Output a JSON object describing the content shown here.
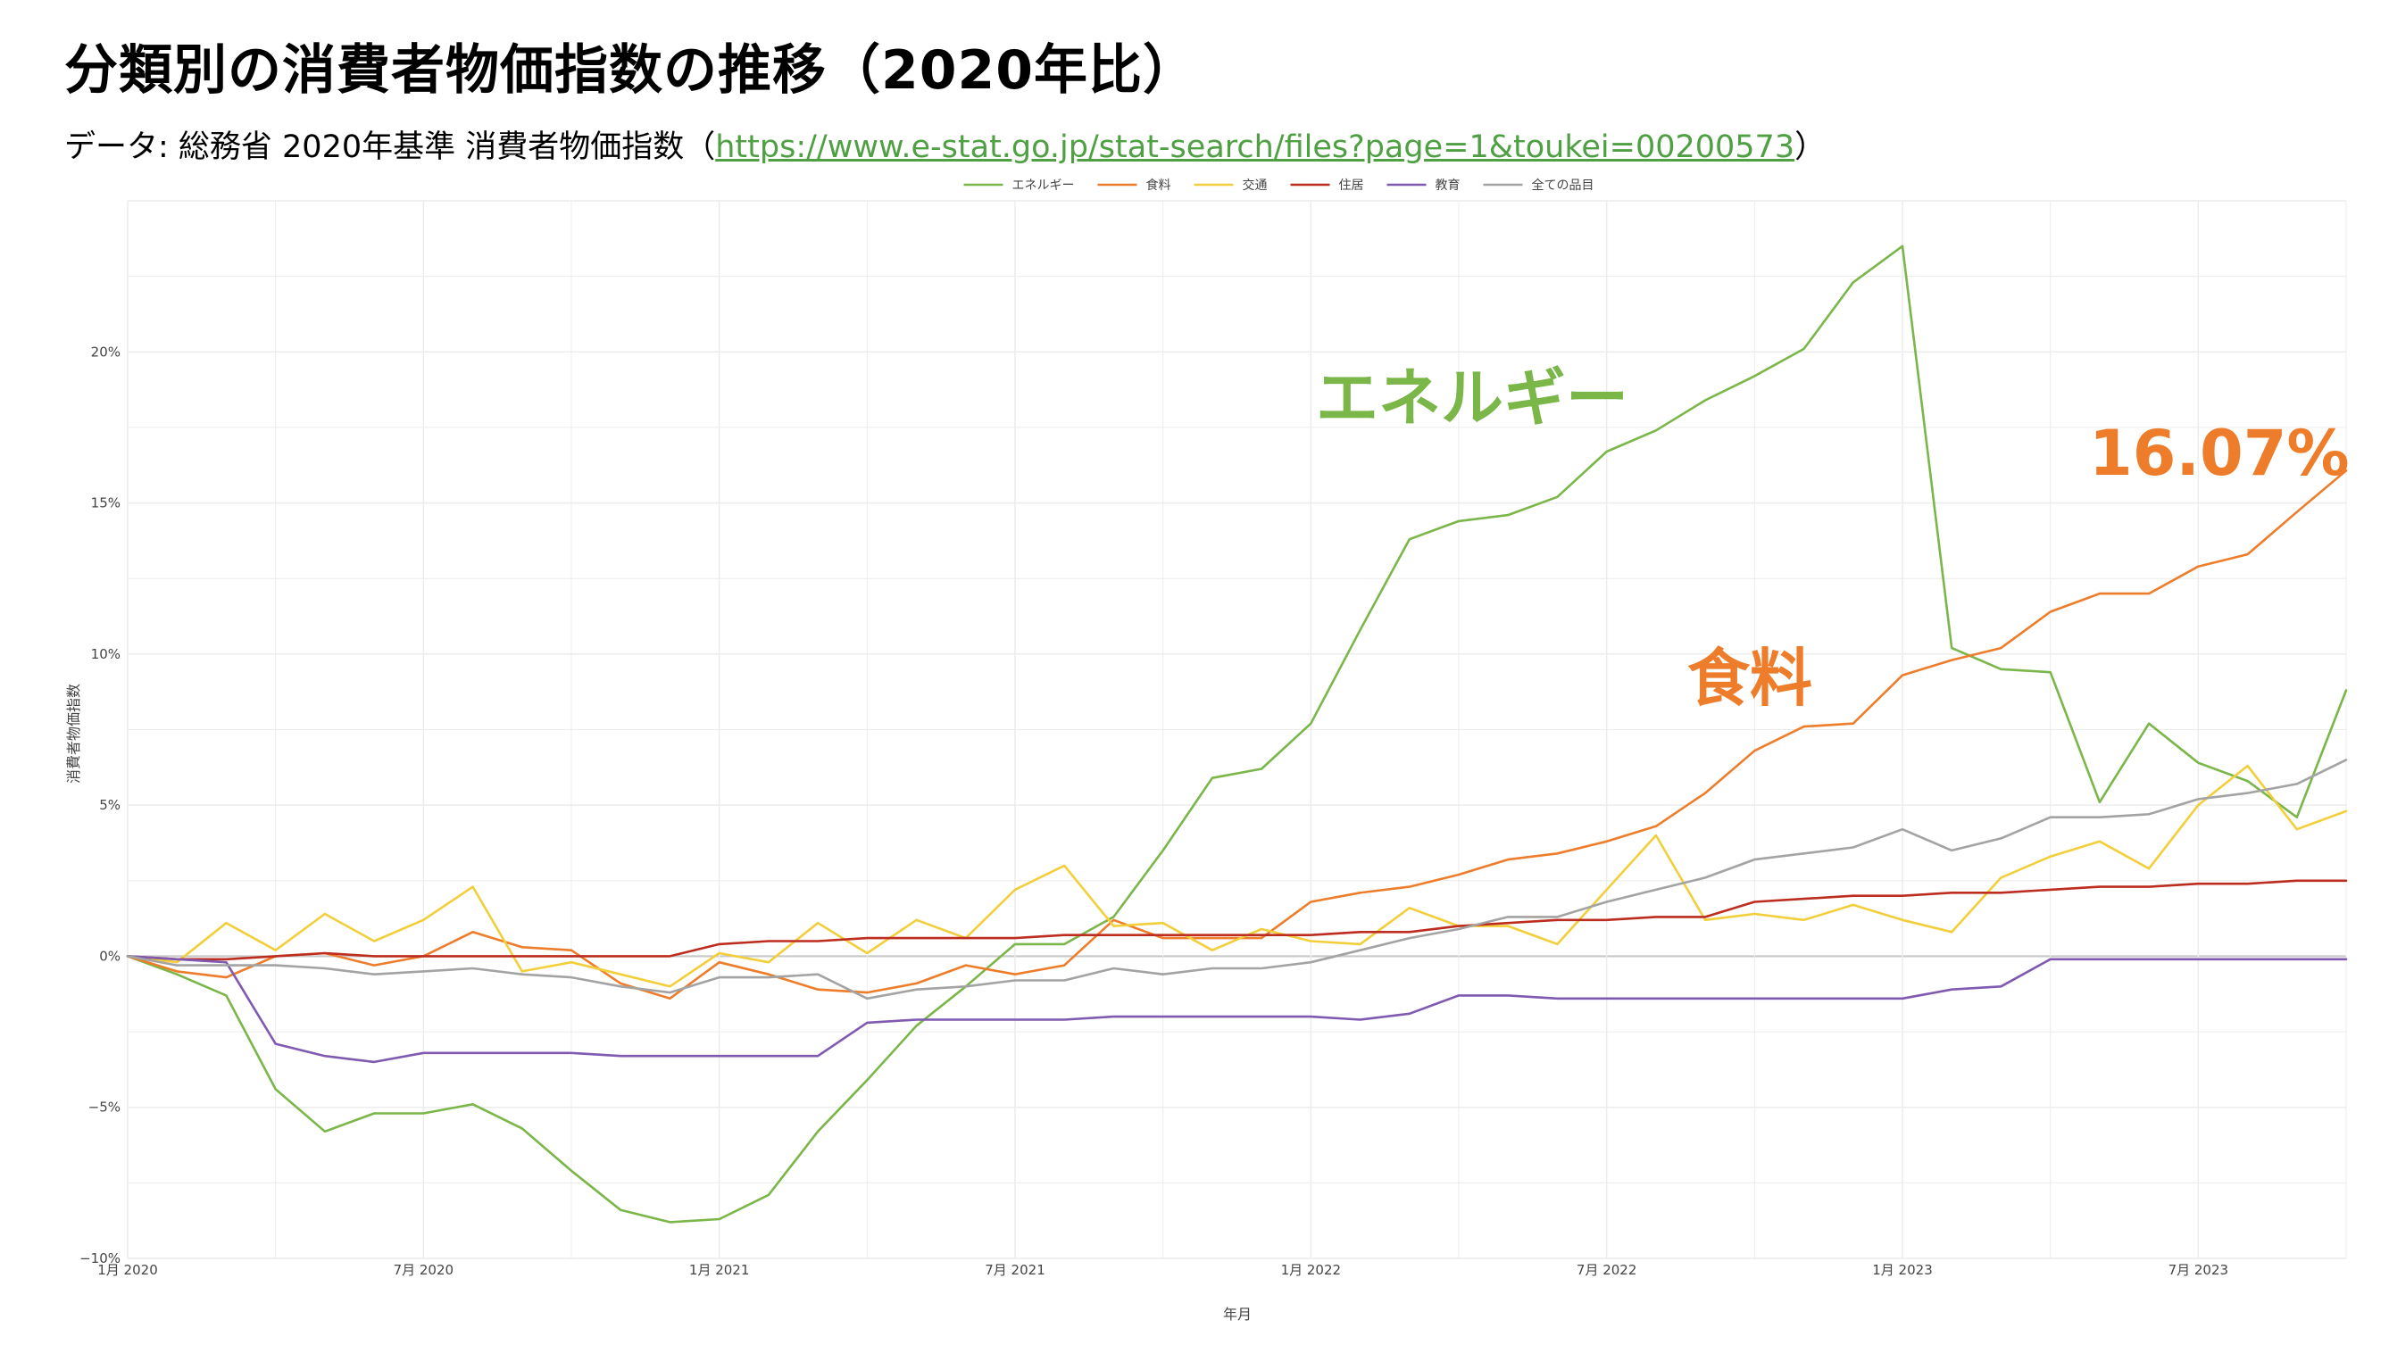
{
  "header": {
    "title": "分類別の消費者物価指数の推移（2020年比）",
    "subtitle_prefix": "データ: 総務省 2020年基準 消費者物価指数（",
    "subtitle_link": "https://www.e-stat.go.jp/stat-search/files?page=1&toukei=00200573",
    "subtitle_suffix": "）"
  },
  "chart_data": {
    "type": "line",
    "xlabel": "年月",
    "ylabel": "消費者物価指数",
    "ylim": [
      -10,
      25
    ],
    "y_ticks": [
      {
        "v": -10,
        "label": "−10%"
      },
      {
        "v": -5,
        "label": "−5%"
      },
      {
        "v": 0,
        "label": "0%"
      },
      {
        "v": 5,
        "label": "5%"
      },
      {
        "v": 10,
        "label": "10%"
      },
      {
        "v": 15,
        "label": "15%"
      },
      {
        "v": 20,
        "label": "20%"
      }
    ],
    "x_ticks": [
      {
        "i": 0,
        "label": "1月 2020"
      },
      {
        "i": 6,
        "label": "7月 2020"
      },
      {
        "i": 12,
        "label": "1月 2021"
      },
      {
        "i": 18,
        "label": "7月 2021"
      },
      {
        "i": 24,
        "label": "1月 2022"
      },
      {
        "i": 30,
        "label": "7月 2022"
      },
      {
        "i": 36,
        "label": "1月 2023"
      },
      {
        "i": 42,
        "label": "7月 2023"
      }
    ],
    "grid": true,
    "legend_position": "top",
    "series": [
      {
        "name": "エネルギー",
        "color": "#7ab648",
        "values": [
          0,
          -0.6,
          -1.3,
          -4.4,
          -5.8,
          -5.2,
          -5.2,
          -4.9,
          -5.7,
          -7.1,
          -8.4,
          -8.8,
          -8.7,
          -7.9,
          -5.8,
          -4.1,
          -2.3,
          -1.0,
          0.4,
          0.4,
          1.3,
          3.5,
          5.9,
          6.2,
          7.7,
          10.8,
          13.8,
          14.4,
          14.6,
          15.2,
          16.7,
          17.4,
          18.4,
          19.2,
          20.1,
          22.3,
          23.5,
          10.2,
          9.5,
          9.4,
          5.1,
          7.7,
          6.4,
          5.8,
          4.6,
          8.8
        ]
      },
      {
        "name": "食料",
        "color": "#ee7d2b",
        "values": [
          0,
          -0.5,
          -0.7,
          0.0,
          0.1,
          -0.3,
          0.0,
          0.8,
          0.3,
          0.2,
          -0.9,
          -1.4,
          -0.2,
          -0.6,
          -1.1,
          -1.2,
          -0.9,
          -0.3,
          -0.6,
          -0.3,
          1.2,
          0.6,
          0.6,
          0.6,
          1.8,
          2.1,
          2.3,
          2.7,
          3.2,
          3.4,
          3.8,
          4.3,
          5.4,
          6.8,
          7.6,
          7.7,
          9.3,
          9.8,
          10.2,
          11.4,
          12.0,
          12.0,
          12.9,
          13.3,
          14.7,
          16.07
        ]
      },
      {
        "name": "交通",
        "color": "#f2cf3a",
        "values": [
          0,
          -0.2,
          1.1,
          0.2,
          1.4,
          0.5,
          1.2,
          2.3,
          -0.5,
          -0.2,
          -0.6,
          -1.0,
          0.1,
          -0.2,
          1.1,
          0.1,
          1.2,
          0.6,
          2.2,
          3.0,
          1.0,
          1.1,
          0.2,
          0.9,
          0.5,
          0.4,
          1.6,
          1.0,
          1.0,
          0.4,
          2.2,
          4.0,
          1.2,
          1.4,
          1.2,
          1.7,
          1.2,
          0.8,
          2.6,
          3.3,
          3.8,
          2.9,
          5.0,
          6.3,
          4.2,
          4.8
        ]
      },
      {
        "name": "住居",
        "color": "#bd2d1f",
        "values": [
          0,
          -0.1,
          -0.1,
          0.0,
          0.1,
          0.0,
          0.0,
          0.0,
          0.0,
          0.0,
          0.0,
          0.0,
          0.4,
          0.5,
          0.5,
          0.6,
          0.6,
          0.6,
          0.6,
          0.7,
          0.7,
          0.7,
          0.7,
          0.7,
          0.7,
          0.8,
          0.8,
          1.0,
          1.1,
          1.2,
          1.2,
          1.3,
          1.3,
          1.8,
          1.9,
          2.0,
          2.0,
          2.1,
          2.1,
          2.2,
          2.3,
          2.3,
          2.4,
          2.4,
          2.5,
          2.5
        ]
      },
      {
        "name": "教育",
        "color": "#7f5ab0",
        "values": [
          0,
          -0.1,
          -0.2,
          -2.9,
          -3.3,
          -3.5,
          -3.2,
          -3.2,
          -3.2,
          -3.2,
          -3.3,
          -3.3,
          -3.3,
          -3.3,
          -3.3,
          -2.2,
          -2.1,
          -2.1,
          -2.1,
          -2.1,
          -2.0,
          -2.0,
          -2.0,
          -2.0,
          -2.0,
          -2.1,
          -1.9,
          -1.3,
          -1.3,
          -1.4,
          -1.4,
          -1.4,
          -1.4,
          -1.4,
          -1.4,
          -1.4,
          -1.4,
          -1.1,
          -1.0,
          -0.1,
          -0.1,
          -0.1,
          -0.1,
          -0.1,
          -0.1,
          -0.1
        ]
      },
      {
        "name": "全ての品目",
        "color": "#a3a3a3",
        "values": [
          0,
          -0.3,
          -0.3,
          -0.3,
          -0.4,
          -0.6,
          -0.5,
          -0.4,
          -0.6,
          -0.7,
          -1.0,
          -1.2,
          -0.7,
          -0.7,
          -0.6,
          -1.4,
          -1.1,
          -1.0,
          -0.8,
          -0.8,
          -0.4,
          -0.6,
          -0.4,
          -0.4,
          -0.2,
          0.2,
          0.6,
          0.9,
          1.3,
          1.3,
          1.8,
          2.2,
          2.6,
          3.2,
          3.4,
          3.6,
          4.2,
          3.5,
          3.9,
          4.6,
          4.6,
          4.7,
          5.2,
          5.4,
          5.7,
          6.5
        ]
      }
    ],
    "annotations": [
      {
        "text": "エネルギー",
        "color": "#7ab648"
      },
      {
        "text": "食料",
        "color": "#ee7d2b"
      },
      {
        "text": "16.07%",
        "color": "#ee7d2b"
      }
    ]
  }
}
